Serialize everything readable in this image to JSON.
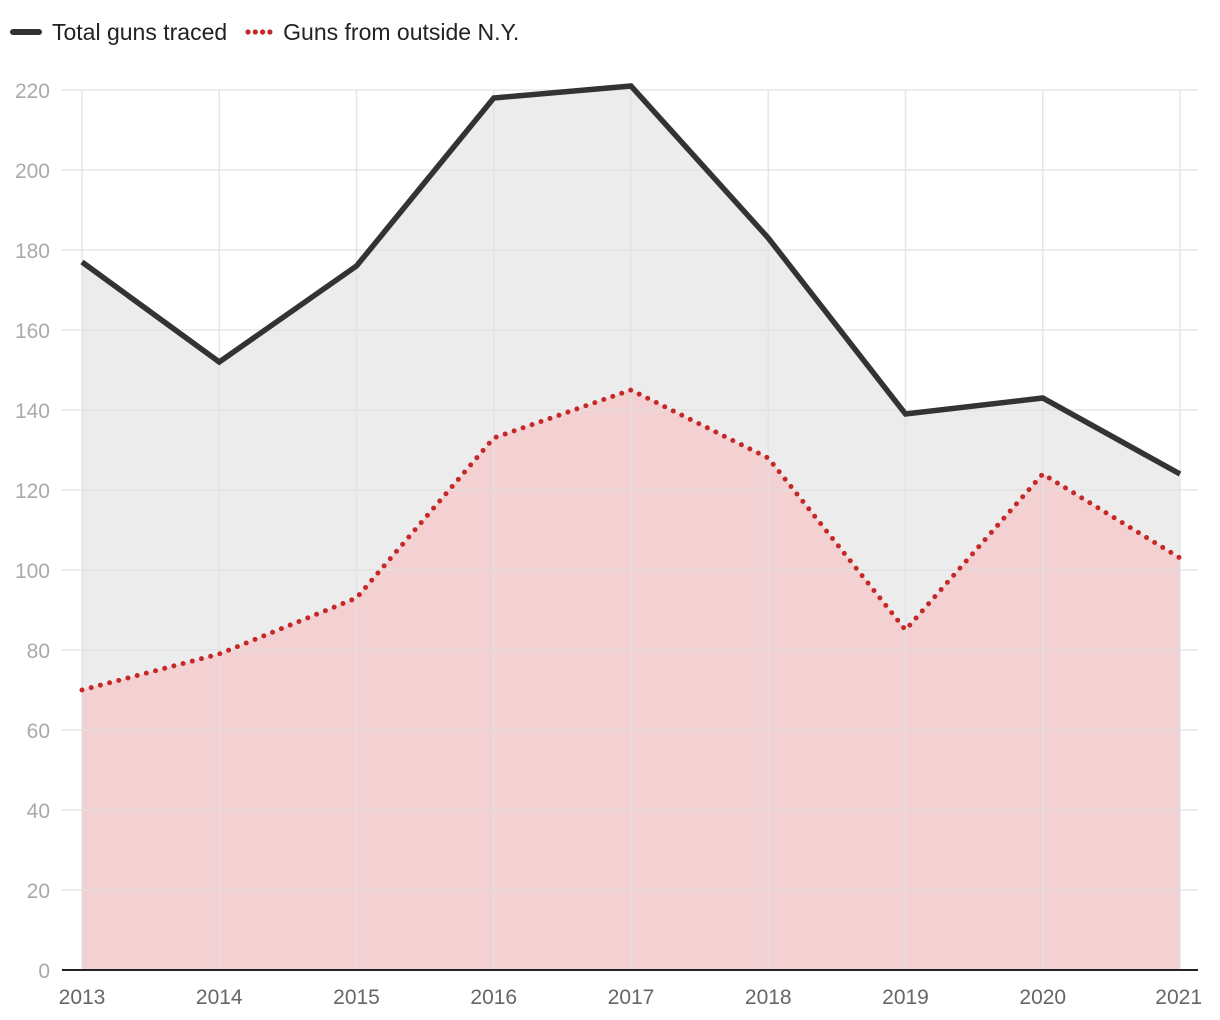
{
  "chart_data": {
    "type": "area",
    "x": [
      "2013",
      "2014",
      "2015",
      "2016",
      "2017",
      "2018",
      "2019",
      "2020",
      "2021"
    ],
    "series": [
      {
        "name": "Total guns traced",
        "values": [
          177,
          152,
          176,
          218,
          221,
          183,
          139,
          143,
          124
        ],
        "color": "#333333",
        "fill": "#ececec",
        "line_style": "solid"
      },
      {
        "name": "Guns from outside N.Y.",
        "values": [
          70,
          79,
          93,
          133,
          145,
          128,
          85,
          124,
          103
        ],
        "color": "#c62828",
        "fill": "#f3d0d1",
        "line_style": "dotted"
      }
    ],
    "ylim": [
      0,
      220
    ],
    "yticks": [
      "0",
      "20",
      "40",
      "60",
      "80",
      "100",
      "120",
      "140",
      "160",
      "180",
      "200",
      "220"
    ],
    "grid": true,
    "legend_position": "top-left",
    "title": "",
    "xlabel": "",
    "ylabel": ""
  },
  "colors": {
    "grid": "#e1e1e1",
    "axis": "#222222",
    "tick_text": "#aaaaaa",
    "x_tick_text": "#666666"
  }
}
